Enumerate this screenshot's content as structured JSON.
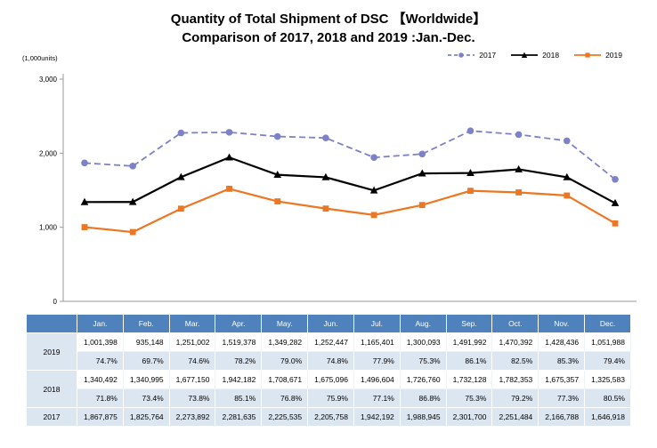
{
  "title_line1": "Quantity of Total Shipment of DSC 【Worldwide】",
  "title_line2": "Comparison of 2017, 2018 and 2019 :Jan.-Dec.",
  "chart_data": {
    "type": "line",
    "title": "Quantity of Total Shipment of DSC 【Worldwide】 Comparison of 2017, 2018 and 2019 :Jan.-Dec.",
    "unit_label": "(1,000units)",
    "categories": [
      "Jan.",
      "Feb.",
      "Mar.",
      "Apr.",
      "May.",
      "Jun.",
      "Jul.",
      "Aug.",
      "Sep.",
      "Oct.",
      "Nov.",
      "Dec."
    ],
    "xlabel": "",
    "ylabel": "(1,000units)",
    "ylim": [
      0,
      3000
    ],
    "yticks": [
      0,
      1000,
      2000,
      3000
    ],
    "ytick_labels": [
      "0",
      "1,000",
      "2,000",
      "3,000"
    ],
    "legend_position": "top-right",
    "grid": false,
    "series": [
      {
        "name": "2017",
        "color": "#7d81c6",
        "style": "dashed",
        "marker": "circle",
        "values": [
          1867.875,
          1825.764,
          2273.892,
          2281.635,
          2225.535,
          2205.758,
          1942.192,
          1988.945,
          2301.7,
          2251.484,
          2166.788,
          1646.918
        ]
      },
      {
        "name": "2018",
        "color": "#000000",
        "style": "solid",
        "marker": "triangle",
        "values": [
          1340.492,
          1340.995,
          1677.15,
          1942.182,
          1708.671,
          1675.096,
          1496.604,
          1726.76,
          1732.128,
          1782.353,
          1675.357,
          1325.583
        ]
      },
      {
        "name": "2019",
        "color": "#ed7623",
        "style": "solid",
        "marker": "square",
        "values": [
          1001.398,
          935.148,
          1251.002,
          1519.378,
          1349.282,
          1252.447,
          1165.401,
          1300.093,
          1491.992,
          1470.392,
          1428.436,
          1051.988
        ]
      }
    ]
  },
  "table": {
    "months": [
      "Jan.",
      "Feb.",
      "Mar.",
      "Apr.",
      "May.",
      "Jun.",
      "Jul.",
      "Aug.",
      "Sep.",
      "Oct.",
      "Nov.",
      "Dec."
    ],
    "rows": [
      {
        "label": "2019",
        "values": [
          "1,001,398",
          "935,148",
          "1,251,002",
          "1,519,378",
          "1,349,282",
          "1,252,447",
          "1,165,401",
          "1,300,093",
          "1,491,992",
          "1,470,392",
          "1,428,436",
          "1,051,988"
        ],
        "percentages": [
          "74.7%",
          "69.7%",
          "74.6%",
          "78.2%",
          "79.0%",
          "74.8%",
          "77.9%",
          "75.3%",
          "86.1%",
          "82.5%",
          "85.3%",
          "79.4%"
        ]
      },
      {
        "label": "2018",
        "values": [
          "1,340,492",
          "1,340,995",
          "1,677,150",
          "1,942,182",
          "1,708,671",
          "1,675,096",
          "1,496,604",
          "1,726,760",
          "1,732,128",
          "1,782,353",
          "1,675,357",
          "1,325,583"
        ],
        "percentages": [
          "71.8%",
          "73.4%",
          "73.8%",
          "85.1%",
          "76.8%",
          "75.9%",
          "77.1%",
          "86.8%",
          "75.3%",
          "79.2%",
          "77.3%",
          "80.5%"
        ]
      },
      {
        "label": "2017",
        "values": [
          "1,867,875",
          "1,825,764",
          "2,273,892",
          "2,281,635",
          "2,225,535",
          "2,205,758",
          "1,942,192",
          "1,988,945",
          "2,301,700",
          "2,251,484",
          "2,166,788",
          "1,646,918"
        ]
      }
    ]
  }
}
